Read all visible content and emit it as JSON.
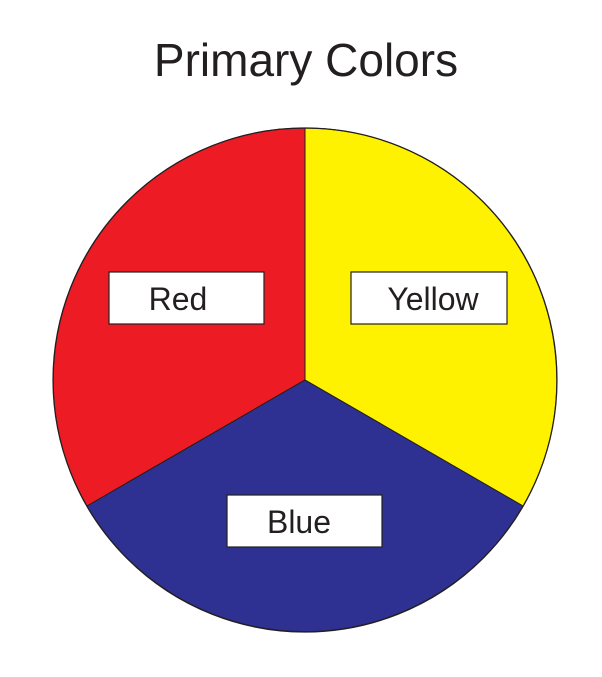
{
  "title": "Primary Colors",
  "segments": [
    {
      "label": "Red",
      "color": "#ED1C24",
      "share": 0.3333
    },
    {
      "label": "Yellow",
      "color": "#FFF200",
      "share": 0.3333
    },
    {
      "label": "Blue",
      "color": "#2E3192",
      "share": 0.3334
    }
  ],
  "outline_color": "#231F20"
}
